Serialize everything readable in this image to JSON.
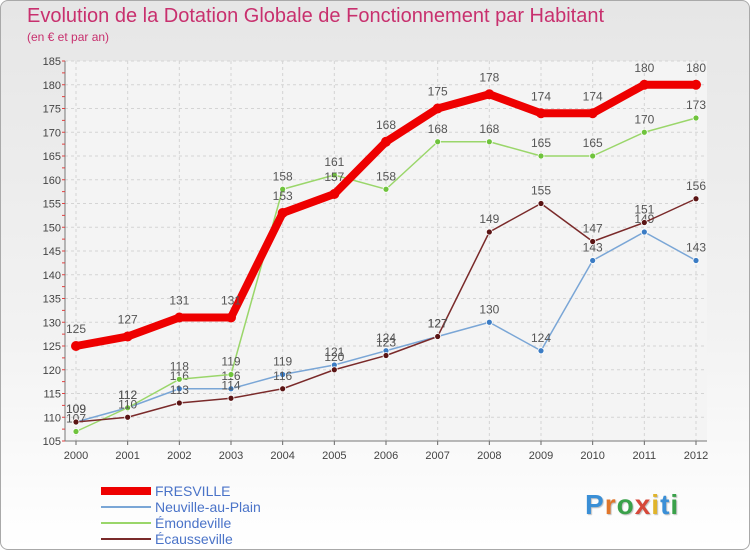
{
  "chart_data": {
    "type": "line",
    "title": "Evolution de la Dotation Globale de Fonctionnement par Habitant",
    "subtitle": "(en € et par an)",
    "xlabel": "",
    "ylabel": "",
    "ylim": [
      105,
      185
    ],
    "ytick_step": 5,
    "categories": [
      "2000",
      "2001",
      "2002",
      "2003",
      "2004",
      "2005",
      "2006",
      "2007",
      "2008",
      "2009",
      "2010",
      "2011",
      "2012"
    ],
    "series": [
      {
        "name": "Neuville-au-Plain",
        "color": "#7aa6d6",
        "dot": "#3b7cc4",
        "values": [
          109,
          112,
          116,
          116,
          119,
          121,
          124,
          127,
          130,
          124,
          143,
          149,
          143
        ]
      },
      {
        "name": "Émondeville",
        "color": "#9ad66a",
        "dot": "#6fc33c",
        "values": [
          107,
          112,
          118,
          119,
          158,
          161,
          158,
          168,
          168,
          165,
          165,
          170,
          173
        ]
      },
      {
        "name": "Écausseville",
        "color": "#7a2a2a",
        "dot": "#5a1414",
        "values": [
          109,
          110,
          113,
          114,
          116,
          120,
          123,
          127,
          149,
          155,
          147,
          151,
          156
        ]
      },
      {
        "name": "FRESVILLE",
        "color": "#ee0000",
        "dot": "#ee0000",
        "values": [
          125,
          127,
          131,
          131,
          153,
          157,
          168,
          175,
          178,
          174,
          174,
          180,
          180
        ]
      }
    ],
    "legend": [
      "FRESVILLE",
      "Neuville-au-Plain",
      "Émondeville",
      "Écausseville"
    ],
    "legend_position": "bottom-left",
    "grid": true
  },
  "logo": {
    "letters": [
      "P",
      "r",
      "o",
      "x",
      "i",
      "t",
      "i"
    ],
    "colors": [
      "#3a8fd6",
      "#e0762b",
      "#3aa14a",
      "#d6483a",
      "#e0b42b",
      "#3a8fd6",
      "#3aa14a"
    ]
  }
}
